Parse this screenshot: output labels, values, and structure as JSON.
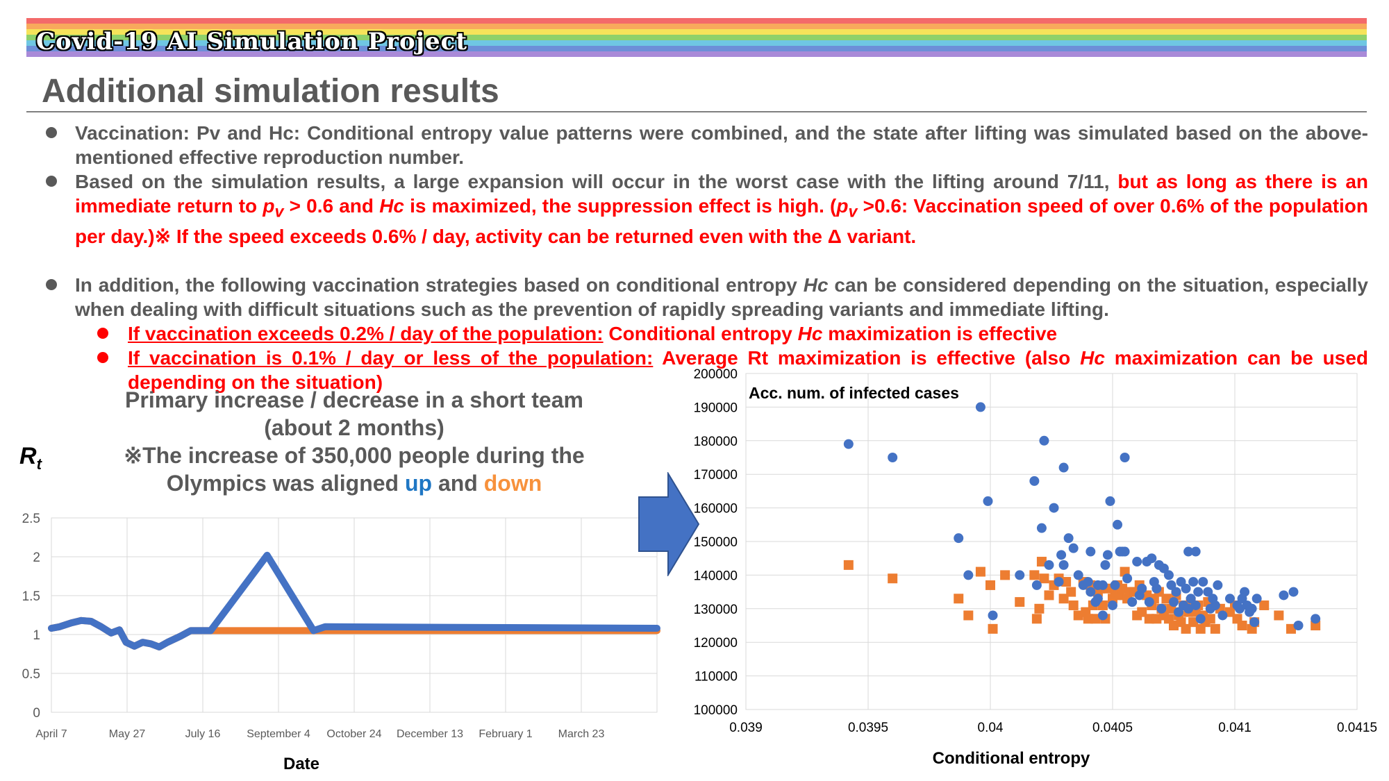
{
  "brand": "Covid-19 AI Simulation Project",
  "title": "Additional simulation results",
  "rainbow_colors": [
    "#f36a6a",
    "#f8a95c",
    "#f6e35a",
    "#8fd16a",
    "#6fc7e3",
    "#6d8fd8",
    "#a98ad8"
  ],
  "bullets": [
    {
      "text": "Vaccination: Pv and Hc: Conditional entropy value patterns were combined, and the state after lifting was simulated based on the above-mentioned effective reproduction number."
    },
    {
      "text_a": "Based on the simulation results, a large expansion will occur in the worst case with the lifting around 7/11,",
      "text_b": " but as long as there is an immediate return to",
      "pv": "p",
      "pv_sub": "v",
      "text_c": "> 0.6 and",
      "hc": "Hc",
      "text_d": " is maximized, the suppression effect is high. (",
      "pv2": "p",
      "pv2_sub": "v",
      "text_e": " >0.6: Vaccination speed of over 0.6% of the population per day.)※ If the speed exceeds 0.6% / day, activity can be returned even with the Δ variant."
    },
    {
      "text_a": "In addition, the following vaccination strategies based on conditional entropy",
      "hc": "Hc",
      "text_b": "can be considered depending on the situation, especially when dealing with difficult situations such as the prevention of rapidly spreading variants and immediate lifting."
    }
  ],
  "sub_bullets": [
    {
      "underlined": "If vaccination exceeds 0.2% / day of the population:",
      "rest_a": " Conditional entropy",
      "hc": "Hc",
      "rest_b": "maximization is effective"
    },
    {
      "underlined": "If vaccination is 0.1% / day or less of the population:",
      "rest_a": " Average Rt maximization is effective (also",
      "hc": "Hc",
      "rest_b": "maximization can be used depending on the situation)"
    }
  ],
  "caption": {
    "line1": "Primary increase / decrease in a short team",
    "line2": "(about 2 months)",
    "line3": "※The increase of 350,000 people during the",
    "line4a": "Olympics was aligned",
    "up": "up",
    "and": "and",
    "down": "down"
  },
  "rt_label": "R",
  "rt_sub": "t",
  "chart_data": [
    {
      "type": "line",
      "xlabel": "Date",
      "ylim": [
        0,
        2.5
      ],
      "yticks": [
        "0",
        "0.5",
        "1",
        "1.5",
        "2",
        "2.5"
      ],
      "xticks": [
        "April 7",
        "May 27",
        "July 16",
        "September 4",
        "October 24",
        "December 13",
        "February 1",
        "March 23"
      ],
      "x_range_days": [
        0,
        365
      ],
      "colors": {
        "up": "#4472c4",
        "down": "#ed7d31"
      },
      "series": [
        {
          "points": [
            [
              0,
              1.08
            ],
            [
              5,
              1.1
            ],
            [
              12,
              1.15
            ],
            [
              18,
              1.18
            ],
            [
              24,
              1.17
            ],
            [
              30,
              1.1
            ],
            [
              36,
              1.02
            ],
            [
              41,
              1.06
            ],
            [
              45,
              0.9
            ],
            [
              50,
              0.85
            ],
            [
              55,
              0.9
            ],
            [
              60,
              0.88
            ],
            [
              65,
              0.84
            ],
            [
              70,
              0.9
            ],
            [
              78,
              0.98
            ],
            [
              84,
              1.05
            ],
            [
              90,
              1.05
            ],
            [
              96,
              1.05
            ],
            [
              130,
              2.02
            ],
            [
              158,
              1.05
            ],
            [
              165,
              1.1
            ],
            [
              365,
              1.08
            ]
          ]
        },
        {
          "points": [
            [
              0,
              1.08
            ],
            [
              5,
              1.1
            ],
            [
              12,
              1.15
            ],
            [
              18,
              1.18
            ],
            [
              24,
              1.17
            ],
            [
              30,
              1.1
            ],
            [
              36,
              1.02
            ],
            [
              41,
              1.06
            ],
            [
              45,
              0.9
            ],
            [
              50,
              0.85
            ],
            [
              55,
              0.9
            ],
            [
              60,
              0.88
            ],
            [
              65,
              0.84
            ],
            [
              70,
              0.9
            ],
            [
              78,
              0.98
            ],
            [
              84,
              1.05
            ],
            [
              365,
              1.05
            ]
          ]
        }
      ]
    },
    {
      "type": "scatter",
      "ylabel": "Acc. num. of infected cases",
      "xlabel": "Conditional entropy",
      "xlim": [
        0.039,
        0.0415
      ],
      "ylim": [
        100000,
        200000
      ],
      "xticks": [
        "0.039",
        "0.0395",
        "0.04",
        "0.0405",
        "0.041",
        "0.0415"
      ],
      "yticks": [
        "100000",
        "110000",
        "120000",
        "130000",
        "140000",
        "150000",
        "160000",
        "170000",
        "180000",
        "190000",
        "200000"
      ],
      "colors": {
        "circles": "#4472c4",
        "squares": "#ed7d31"
      },
      "series": [
        {
          "marker": "circle",
          "points": [
            [
              0.03942,
              179000
            ],
            [
              0.0396,
              175000
            ],
            [
              0.03987,
              151000
            ],
            [
              0.03991,
              140000
            ],
            [
              0.03996,
              190000
            ],
            [
              0.03999,
              162000
            ],
            [
              0.04001,
              128000
            ],
            [
              0.04012,
              140000
            ],
            [
              0.04018,
              168000
            ],
            [
              0.04019,
              137000
            ],
            [
              0.04021,
              154000
            ],
            [
              0.04022,
              180000
            ],
            [
              0.04024,
              143000
            ],
            [
              0.04026,
              160000
            ],
            [
              0.04028,
              138000
            ],
            [
              0.04029,
              146000
            ],
            [
              0.0403,
              143000
            ],
            [
              0.0403,
              172000
            ],
            [
              0.04032,
              151000
            ],
            [
              0.04034,
              148000
            ],
            [
              0.04036,
              140000
            ],
            [
              0.04038,
              137000
            ],
            [
              0.0404,
              138000
            ],
            [
              0.04041,
              147000
            ],
            [
              0.04041,
              135000
            ],
            [
              0.04043,
              132000
            ],
            [
              0.04044,
              137000
            ],
            [
              0.04044,
              133000
            ],
            [
              0.04046,
              137000
            ],
            [
              0.04046,
              128000
            ],
            [
              0.04047,
              143000
            ],
            [
              0.04048,
              146000
            ],
            [
              0.04049,
              162000
            ],
            [
              0.0405,
              131000
            ],
            [
              0.04051,
              137000
            ],
            [
              0.04052,
              155000
            ],
            [
              0.04053,
              147000
            ],
            [
              0.04054,
              147000
            ],
            [
              0.04055,
              175000
            ],
            [
              0.04055,
              147000
            ],
            [
              0.04056,
              139000
            ],
            [
              0.04058,
              132000
            ],
            [
              0.0406,
              144000
            ],
            [
              0.04061,
              134000
            ],
            [
              0.04062,
              136000
            ],
            [
              0.04064,
              144000
            ],
            [
              0.04065,
              132000
            ],
            [
              0.04066,
              145000
            ],
            [
              0.04067,
              138000
            ],
            [
              0.04068,
              136000
            ],
            [
              0.04069,
              143000
            ],
            [
              0.0407,
              130000
            ],
            [
              0.04071,
              142000
            ],
            [
              0.04073,
              140000
            ],
            [
              0.04074,
              137000
            ],
            [
              0.04075,
              132000
            ],
            [
              0.04076,
              135000
            ],
            [
              0.04077,
              129000
            ],
            [
              0.04078,
              138000
            ],
            [
              0.04079,
              131000
            ],
            [
              0.0408,
              136000
            ],
            [
              0.04081,
              130000
            ],
            [
              0.04081,
              147000
            ],
            [
              0.04082,
              133000
            ],
            [
              0.04083,
              138000
            ],
            [
              0.04084,
              131000
            ],
            [
              0.04084,
              147000
            ],
            [
              0.04085,
              135000
            ],
            [
              0.04086,
              127000
            ],
            [
              0.04087,
              138000
            ],
            [
              0.04089,
              135000
            ],
            [
              0.0409,
              130000
            ],
            [
              0.04091,
              133000
            ],
            [
              0.04092,
              131000
            ],
            [
              0.04093,
              137000
            ],
            [
              0.04095,
              128000
            ],
            [
              0.04098,
              133000
            ],
            [
              0.04101,
              131000
            ],
            [
              0.04102,
              130000
            ],
            [
              0.04103,
              133000
            ],
            [
              0.04104,
              135000
            ],
            [
              0.04105,
              131000
            ],
            [
              0.04106,
              129000
            ],
            [
              0.04107,
              130000
            ],
            [
              0.04108,
              126000
            ],
            [
              0.04109,
              133000
            ],
            [
              0.0412,
              134000
            ],
            [
              0.04124,
              135000
            ],
            [
              0.04126,
              125000
            ],
            [
              0.04133,
              127000
            ]
          ]
        },
        {
          "marker": "square",
          "points": [
            [
              0.03942,
              143000
            ],
            [
              0.0396,
              139000
            ],
            [
              0.03987,
              133000
            ],
            [
              0.03991,
              128000
            ],
            [
              0.03996,
              141000
            ],
            [
              0.04,
              137000
            ],
            [
              0.04001,
              124000
            ],
            [
              0.04006,
              140000
            ],
            [
              0.04012,
              132000
            ],
            [
              0.04018,
              140000
            ],
            [
              0.04019,
              127000
            ],
            [
              0.0402,
              130000
            ],
            [
              0.04021,
              144000
            ],
            [
              0.04022,
              139000
            ],
            [
              0.04024,
              134000
            ],
            [
              0.04026,
              137000
            ],
            [
              0.04028,
              139000
            ],
            [
              0.0403,
              133000
            ],
            [
              0.04031,
              138000
            ],
            [
              0.04033,
              135000
            ],
            [
              0.04034,
              131000
            ],
            [
              0.04036,
              128000
            ],
            [
              0.04038,
              138000
            ],
            [
              0.04039,
              129000
            ],
            [
              0.0404,
              127000
            ],
            [
              0.04041,
              137000
            ],
            [
              0.04042,
              131000
            ],
            [
              0.04043,
              127000
            ],
            [
              0.04044,
              135000
            ],
            [
              0.04045,
              136000
            ],
            [
              0.04046,
              131000
            ],
            [
              0.04047,
              127000
            ],
            [
              0.04048,
              136000
            ],
            [
              0.0405,
              133000
            ],
            [
              0.04051,
              135000
            ],
            [
              0.04052,
              137000
            ],
            [
              0.04053,
              134000
            ],
            [
              0.04054,
              136000
            ],
            [
              0.04055,
              141000
            ],
            [
              0.04056,
              133000
            ],
            [
              0.04057,
              135000
            ],
            [
              0.04059,
              135000
            ],
            [
              0.0406,
              128000
            ],
            [
              0.04061,
              137000
            ],
            [
              0.04062,
              129000
            ],
            [
              0.04064,
              134000
            ],
            [
              0.04065,
              127000
            ],
            [
              0.04066,
              131000
            ],
            [
              0.04067,
              133000
            ],
            [
              0.04068,
              127000
            ],
            [
              0.04069,
              135000
            ],
            [
              0.0407,
              130000
            ],
            [
              0.04071,
              128000
            ],
            [
              0.04072,
              133000
            ],
            [
              0.04073,
              127000
            ],
            [
              0.04074,
              130000
            ],
            [
              0.04075,
              125000
            ],
            [
              0.04076,
              134000
            ],
            [
              0.04077,
              128000
            ],
            [
              0.04078,
              126000
            ],
            [
              0.04079,
              131000
            ],
            [
              0.0408,
              124000
            ],
            [
              0.04081,
              129000
            ],
            [
              0.04082,
              132000
            ],
            [
              0.04083,
              126000
            ],
            [
              0.04084,
              129000
            ],
            [
              0.04085,
              131000
            ],
            [
              0.04086,
              124000
            ],
            [
              0.04087,
              128000
            ],
            [
              0.04088,
              126000
            ],
            [
              0.04089,
              132000
            ],
            [
              0.0409,
              127000
            ],
            [
              0.04092,
              124000
            ],
            [
              0.04094,
              130000
            ],
            [
              0.04098,
              129000
            ],
            [
              0.041,
              131000
            ],
            [
              0.04101,
              127000
            ],
            [
              0.04103,
              125000
            ],
            [
              0.04107,
              124000
            ],
            [
              0.04108,
              126000
            ],
            [
              0.04112,
              131000
            ],
            [
              0.04118,
              128000
            ],
            [
              0.04123,
              124000
            ],
            [
              0.04133,
              125000
            ]
          ]
        }
      ]
    }
  ]
}
